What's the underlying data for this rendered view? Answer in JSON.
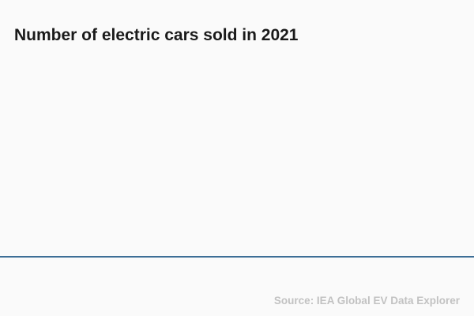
{
  "colors": {
    "background": "#fafafa",
    "title": "#1a1a1a",
    "axis_line": "#3d6e96",
    "source_text": "#c2c2c2"
  },
  "chart": {
    "title": "Number of electric cars sold in 2021",
    "source": "Source: IEA Global EV Data Explorer"
  },
  "chart_data": {
    "type": "bar",
    "title": "Number of electric cars sold in 2021",
    "xlabel": "",
    "ylabel": "",
    "categories": [],
    "values": [],
    "legend": "none",
    "grid": "off",
    "layout_hints": {
      "plot_area_empty": true,
      "baseline_axis_only": true,
      "source_position": "bottom-right"
    }
  }
}
